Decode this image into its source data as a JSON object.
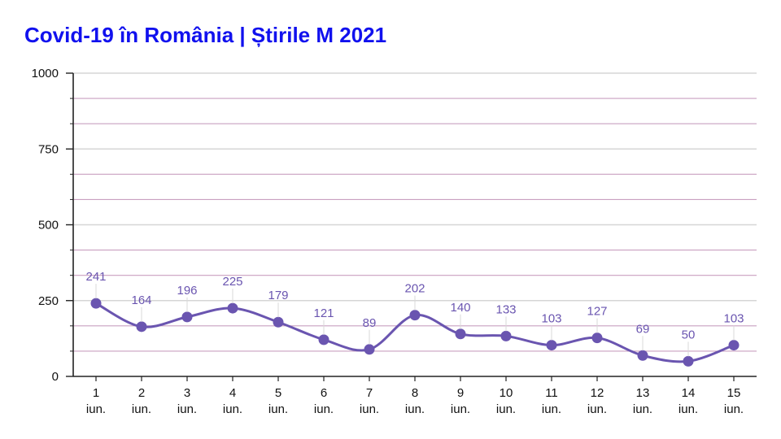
{
  "title": "Covid-19 în România | Știrile M 2021",
  "colors": {
    "title": "#1111ee",
    "line": "#6a55b0",
    "point": "#6a55b0",
    "major_grid": "#d6d6d6",
    "minor_grid": "#c9a0c0",
    "axis": "#222222",
    "data_label": "#6a55b0"
  },
  "chart_data": {
    "type": "line",
    "title": "Covid-19 în România | Știrile M 2021",
    "xlabel": "",
    "ylabel": "",
    "ylim": [
      0,
      1000
    ],
    "yticks": [
      0,
      250,
      500,
      750,
      1000
    ],
    "grid": true,
    "legend": "none",
    "categories": [
      [
        "1",
        "iun."
      ],
      [
        "2",
        "iun."
      ],
      [
        "3",
        "iun."
      ],
      [
        "4",
        "iun."
      ],
      [
        "5",
        "iun."
      ],
      [
        "6",
        "iun."
      ],
      [
        "7",
        "iun."
      ],
      [
        "8",
        "iun."
      ],
      [
        "9",
        "iun."
      ],
      [
        "10",
        "iun."
      ],
      [
        "11",
        "iun."
      ],
      [
        "12",
        "iun."
      ],
      [
        "13",
        "iun."
      ],
      [
        "14",
        "iun."
      ],
      [
        "15",
        "iun."
      ]
    ],
    "values": [
      241,
      164,
      196,
      225,
      179,
      121,
      89,
      202,
      140,
      133,
      103,
      127,
      69,
      50,
      103
    ]
  }
}
